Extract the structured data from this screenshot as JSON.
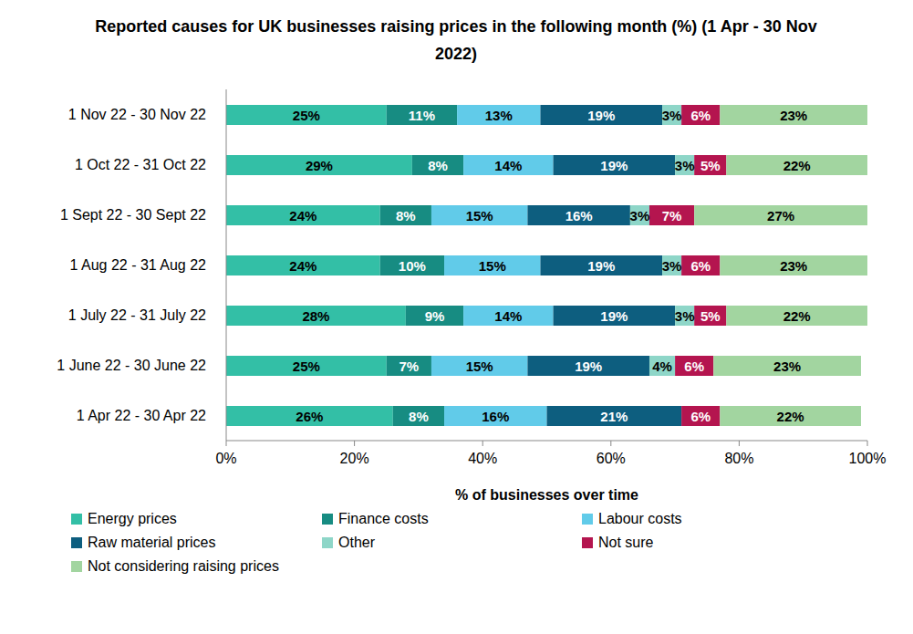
{
  "chart_data": {
    "type": "bar",
    "orientation": "horizontal",
    "stacked": true,
    "data_labels": true,
    "grid": false,
    "legend": "bottom",
    "title": "Reported causes for UK businesses raising prices in the following month (%) (1 Apr - 30 Nov 2022)",
    "x_label": "% of businesses over time",
    "categories": [
      "1 Nov 22 - 30 Nov 22",
      "1 Oct 22 - 31 Oct 22",
      "1 Sept 22 - 30 Sept 22",
      "1 Aug 22 - 31 Aug 22",
      "1 July 22 - 31 July 22",
      "1 June 22 - 30 June 22",
      "1 Apr 22 - 30 Apr 22"
    ],
    "xlim": [
      0,
      100
    ],
    "xticks": [
      {
        "value": 0,
        "label": "0%"
      },
      {
        "value": 20,
        "label": "20%"
      },
      {
        "value": 40,
        "label": "40%"
      },
      {
        "value": 60,
        "label": "60%"
      },
      {
        "value": 80,
        "label": "80%"
      },
      {
        "value": 100,
        "label": "100%"
      }
    ],
    "series": [
      {
        "name": "Energy prices",
        "color": "#33BFA6",
        "values": [
          25,
          29,
          24,
          24,
          28,
          25,
          26
        ],
        "value_labels": [
          "25%",
          "29%",
          "24%",
          "24%",
          "28%",
          "25%",
          "26%"
        ]
      },
      {
        "name": "Finance costs",
        "color": "#178C82",
        "values": [
          11,
          8,
          8,
          10,
          9,
          7,
          8
        ],
        "value_labels": [
          "11%",
          "8%",
          "8%",
          "10%",
          "9%",
          "7%",
          "8%"
        ]
      },
      {
        "name": "Labour costs",
        "color": "#61CBE9",
        "values": [
          13,
          14,
          15,
          15,
          14,
          15,
          16
        ],
        "value_labels": [
          "13%",
          "14%",
          "15%",
          "15%",
          "14%",
          "15%",
          "16%"
        ]
      },
      {
        "name": "Raw material prices",
        "color": "#0D5E7F",
        "values": [
          19,
          19,
          16,
          19,
          19,
          19,
          21
        ],
        "value_labels": [
          "19%",
          "19%",
          "16%",
          "19%",
          "19%",
          "19%",
          "21%"
        ]
      },
      {
        "name": "Other",
        "color": "#8ED6C8",
        "values": [
          3,
          3,
          3,
          3,
          3,
          4,
          null
        ],
        "value_labels": [
          "3%",
          "3%",
          "3%",
          "3%",
          "3%",
          "4%",
          null
        ]
      },
      {
        "name": "Not sure",
        "color": "#B4154F",
        "values": [
          6,
          5,
          7,
          6,
          5,
          6,
          6
        ],
        "value_labels": [
          "6%",
          "5%",
          "7%",
          "6%",
          "5%",
          "6%",
          "6%"
        ]
      },
      {
        "name": "Not considering raising prices",
        "color": "#A2D5A0",
        "values": [
          23,
          22,
          27,
          23,
          22,
          23,
          22
        ],
        "value_labels": [
          "23%",
          "22%",
          "27%",
          "23%",
          "22%",
          "23%",
          "22%"
        ]
      }
    ]
  }
}
